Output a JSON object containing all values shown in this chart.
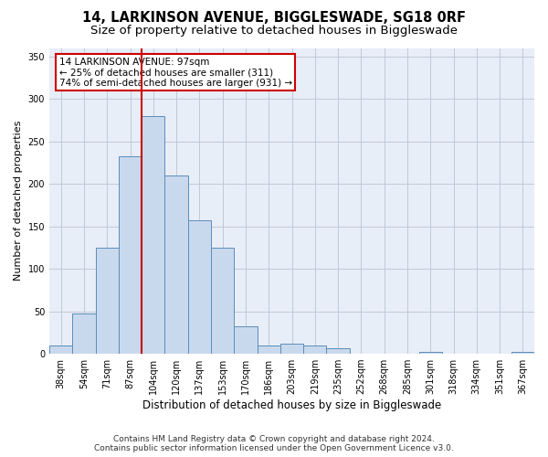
{
  "title": "14, LARKINSON AVENUE, BIGGLESWADE, SG18 0RF",
  "subtitle": "Size of property relative to detached houses in Biggleswade",
  "xlabel": "Distribution of detached houses by size in Biggleswade",
  "ylabel": "Number of detached properties",
  "categories": [
    "38sqm",
    "54sqm",
    "71sqm",
    "87sqm",
    "104sqm",
    "120sqm",
    "137sqm",
    "153sqm",
    "170sqm",
    "186sqm",
    "203sqm",
    "219sqm",
    "235sqm",
    "252sqm",
    "268sqm",
    "285sqm",
    "301sqm",
    "318sqm",
    "334sqm",
    "351sqm",
    "367sqm"
  ],
  "values": [
    10,
    47,
    125,
    232,
    280,
    210,
    157,
    125,
    32,
    10,
    12,
    10,
    7,
    0,
    0,
    0,
    2,
    0,
    0,
    0,
    2
  ],
  "bar_color": "#c9d9ed",
  "bar_edge_color": "#5b8db8",
  "vline_x": 3.5,
  "vline_color": "#cc0000",
  "annotation_line1": "14 LARKINSON AVENUE: 97sqm",
  "annotation_line2": "← 25% of detached houses are smaller (311)",
  "annotation_line3": "74% of semi-detached houses are larger (931) →",
  "annotation_box_color": "#ffffff",
  "annotation_box_edge_color": "#cc0000",
  "ylim": [
    0,
    360
  ],
  "yticks": [
    0,
    50,
    100,
    150,
    200,
    250,
    300,
    350
  ],
  "grid_color": "#c0c8d8",
  "background_color": "#e8eef8",
  "footer_line1": "Contains HM Land Registry data © Crown copyright and database right 2024.",
  "footer_line2": "Contains public sector information licensed under the Open Government Licence v3.0.",
  "title_fontsize": 10.5,
  "subtitle_fontsize": 9.5,
  "xlabel_fontsize": 8.5,
  "ylabel_fontsize": 8,
  "tick_fontsize": 7,
  "annotation_fontsize": 7.5,
  "footer_fontsize": 6.5
}
